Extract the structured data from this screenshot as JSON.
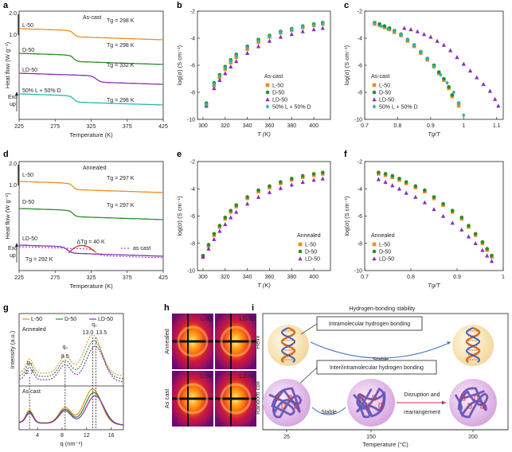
{
  "panel_letters": [
    "a",
    "b",
    "c",
    "d",
    "e",
    "f",
    "g",
    "h",
    "i"
  ],
  "colors": {
    "L": "#f08c1e",
    "D": "#2a8c2a",
    "LD": "#8a2db8",
    "mix": "#2ab5b5",
    "red": "#d42a2a"
  },
  "chart_data": [
    {
      "id": "a",
      "type": "line",
      "title": "As-cast",
      "xlabel": "Temperature (K)",
      "ylabel": "Heat flow (W g⁻¹)",
      "xticks": [
        "225",
        "275",
        "325",
        "375",
        "425"
      ],
      "xlim": [
        225,
        425
      ],
      "scale_labels": [
        "2.0",
        "1.0"
      ],
      "exo_label": "Exo\nup",
      "series": [
        {
          "name": "L-50",
          "color": "#f08c1e",
          "tg_label": "Tg = 298 K"
        },
        {
          "name": "D-50",
          "color": "#2a8c2a",
          "tg_label": "Tg = 298 K"
        },
        {
          "name": "LD-50",
          "color": "#8a2db8",
          "tg_label": "Tg = 332 K"
        },
        {
          "name": "50% L + 50% D",
          "color": "#2ab5b5",
          "tg_label": "Tg = 298 K"
        }
      ]
    },
    {
      "id": "b",
      "type": "scatter",
      "legend_title": "As-cast",
      "xlabel": "T (K)",
      "ylabel": "log(σ) (S cm⁻¹)",
      "xlim": [
        295,
        415
      ],
      "ylim": [
        -10,
        -2
      ],
      "xticks": [
        300,
        320,
        340,
        360,
        380,
        400
      ],
      "yticks": [
        -2,
        -4,
        -6,
        -8,
        -10
      ],
      "series": [
        {
          "name": "L-50",
          "marker": "square",
          "color": "#f08c1e",
          "x": [
            303,
            310,
            315,
            320,
            325,
            330,
            340,
            350,
            360,
            370,
            380,
            390,
            400,
            408
          ],
          "y": [
            -9.0,
            -7.5,
            -6.9,
            -6.3,
            -5.8,
            -5.4,
            -4.8,
            -4.3,
            -3.9,
            -3.6,
            -3.4,
            -3.2,
            -3.05,
            -2.95
          ]
        },
        {
          "name": "D-50",
          "marker": "circle",
          "color": "#2a8c2a",
          "x": [
            303,
            310,
            315,
            320,
            325,
            330,
            340,
            350,
            360,
            370,
            380,
            390,
            400,
            408
          ],
          "y": [
            -8.8,
            -7.3,
            -6.7,
            -6.1,
            -5.6,
            -5.2,
            -4.6,
            -4.1,
            -3.8,
            -3.5,
            -3.3,
            -3.1,
            -2.95,
            -2.85
          ]
        },
        {
          "name": "LD-50",
          "marker": "triangle",
          "color": "#8a2db8",
          "x": [
            303,
            310,
            315,
            320,
            325,
            330,
            340,
            350,
            360,
            370,
            380,
            390,
            400,
            408
          ],
          "y": [
            -9.0,
            -7.7,
            -7.1,
            -6.6,
            -6.1,
            -5.7,
            -5.1,
            -4.6,
            -4.2,
            -3.9,
            -3.7,
            -3.5,
            -3.35,
            -3.25
          ]
        },
        {
          "name": "50% L + 50% D",
          "marker": "diamond",
          "color": "#2ab5b5",
          "x": [
            303,
            310,
            315,
            320,
            325,
            330,
            340,
            350,
            360,
            370,
            380,
            390,
            400,
            408
          ],
          "y": [
            -8.9,
            -7.4,
            -6.8,
            -6.2,
            -5.7,
            -5.3,
            -4.7,
            -4.2,
            -3.85,
            -3.55,
            -3.35,
            -3.15,
            -3.0,
            -2.9
          ]
        }
      ]
    },
    {
      "id": "c",
      "type": "scatter",
      "legend_title": "As-cast",
      "xlabel": "Tg/T",
      "ylabel": "log(σ) (S cm⁻¹)",
      "xlim": [
        0.7,
        1.12
      ],
      "ylim": [
        -10,
        -2
      ],
      "xticks": [
        0.7,
        0.8,
        0.9,
        1.0,
        1.1
      ],
      "yticks": [
        -2,
        -4,
        -6,
        -8,
        -10
      ],
      "series": [
        {
          "name": "L-50",
          "marker": "square",
          "color": "#f08c1e",
          "x": [
            0.73,
            0.745,
            0.76,
            0.775,
            0.79,
            0.81,
            0.83,
            0.85,
            0.87,
            0.89,
            0.91,
            0.925,
            0.94,
            0.955,
            0.965,
            0.985
          ],
          "y": [
            -2.95,
            -3.05,
            -3.2,
            -3.35,
            -3.55,
            -3.8,
            -4.2,
            -4.6,
            -5.1,
            -5.6,
            -6.1,
            -6.6,
            -7.1,
            -7.7,
            -8.3,
            -9.0
          ]
        },
        {
          "name": "D-50",
          "marker": "circle",
          "color": "#2a8c2a",
          "x": [
            0.73,
            0.745,
            0.76,
            0.775,
            0.79,
            0.81,
            0.83,
            0.85,
            0.87,
            0.89,
            0.91,
            0.925,
            0.94,
            0.955,
            0.965,
            0.985
          ],
          "y": [
            -2.85,
            -2.95,
            -3.1,
            -3.25,
            -3.45,
            -3.7,
            -4.1,
            -4.5,
            -5.0,
            -5.5,
            -6.0,
            -6.5,
            -7.0,
            -7.6,
            -8.2,
            -8.8
          ]
        },
        {
          "name": "LD-50",
          "marker": "triangle",
          "color": "#8a2db8",
          "x": [
            0.82,
            0.84,
            0.86,
            0.88,
            0.9,
            0.92,
            0.94,
            0.96,
            0.98,
            1.0,
            1.02,
            1.04,
            1.06,
            1.08,
            1.095,
            1.105
          ],
          "y": [
            -3.25,
            -3.35,
            -3.5,
            -3.7,
            -3.9,
            -4.2,
            -4.5,
            -4.9,
            -5.4,
            -5.9,
            -6.4,
            -6.9,
            -7.4,
            -7.9,
            -8.5,
            -9.0
          ]
        },
        {
          "name": "50% L + 50% D",
          "marker": "diamond",
          "color": "#2ab5b5",
          "x": [
            0.73,
            0.75,
            0.77,
            0.79,
            0.81,
            0.83,
            0.85,
            0.87,
            0.89,
            0.91,
            0.93,
            0.95,
            0.97,
            0.985,
            1.0
          ],
          "y": [
            -2.9,
            -3.1,
            -3.3,
            -3.5,
            -3.75,
            -4.1,
            -4.5,
            -5.0,
            -5.5,
            -6.1,
            -6.7,
            -7.3,
            -8.0,
            -8.8,
            -9.7
          ]
        }
      ]
    },
    {
      "id": "d",
      "type": "line",
      "title": "Annealed",
      "xlabel": "Temperature (K)",
      "ylabel": "Heat flow (W g⁻¹)",
      "xticks": [
        "225",
        "275",
        "325",
        "375",
        "425"
      ],
      "xlim": [
        225,
        425
      ],
      "scale_labels": [
        "2.0",
        "1.0"
      ],
      "exo_label": "Exo\nup",
      "series": [
        {
          "name": "L-50",
          "color": "#f08c1e",
          "tg_label": "Tg = 297 K"
        },
        {
          "name": "D-50",
          "color": "#2a8c2a",
          "tg_label": "Tg = 297 K"
        },
        {
          "name": "LD-50",
          "color": "#8a2db8",
          "tg_label": "Tg = 292 K"
        }
      ],
      "annotation": "ΔTg = 40 K",
      "ascast_label": "as cast"
    },
    {
      "id": "e",
      "type": "scatter",
      "legend_title": "Annealed",
      "xlabel": "T (K)",
      "ylabel": "log(σ) (S cm⁻¹)",
      "xlim": [
        295,
        415
      ],
      "ylim": [
        -10,
        -2
      ],
      "xticks": [
        300,
        320,
        340,
        360,
        380,
        400
      ],
      "yticks": [
        -2,
        -4,
        -6,
        -8,
        -10
      ],
      "series": [
        {
          "name": "L-50",
          "marker": "square",
          "color": "#f08c1e",
          "x": [
            300,
            305,
            310,
            315,
            320,
            325,
            330,
            340,
            350,
            360,
            370,
            380,
            390,
            400,
            408
          ],
          "y": [
            -9.0,
            -8.2,
            -7.4,
            -6.8,
            -6.2,
            -5.7,
            -5.3,
            -4.7,
            -4.2,
            -3.9,
            -3.6,
            -3.35,
            -3.15,
            -3.0,
            -2.9
          ]
        },
        {
          "name": "D-50",
          "marker": "circle",
          "color": "#2a8c2a",
          "x": [
            300,
            305,
            310,
            315,
            320,
            325,
            330,
            340,
            350,
            360,
            370,
            380,
            390,
            400,
            408
          ],
          "y": [
            -8.9,
            -8.1,
            -7.3,
            -6.7,
            -6.1,
            -5.6,
            -5.2,
            -4.6,
            -4.1,
            -3.8,
            -3.5,
            -3.25,
            -3.05,
            -2.9,
            -2.8
          ]
        },
        {
          "name": "LD-50",
          "marker": "triangle",
          "color": "#8a2db8",
          "x": [
            300,
            305,
            310,
            315,
            320,
            325,
            330,
            340,
            350,
            360,
            370,
            380,
            390,
            400,
            408
          ],
          "y": [
            -9.0,
            -8.4,
            -7.7,
            -7.1,
            -6.6,
            -6.1,
            -5.7,
            -5.1,
            -4.6,
            -4.25,
            -3.95,
            -3.7,
            -3.5,
            -3.35,
            -3.25
          ]
        }
      ]
    },
    {
      "id": "f",
      "type": "scatter",
      "legend_title": "Annealed",
      "xlabel": "Tg/T",
      "ylabel": "log(σ) (S cm⁻¹)",
      "xlim": [
        0.7,
        1.0
      ],
      "ylim": [
        -10,
        -2
      ],
      "xticks": [
        0.7,
        0.8,
        0.9,
        1.0
      ],
      "yticks": [
        -2,
        -4,
        -6,
        -8,
        -10
      ],
      "series": [
        {
          "name": "L-50",
          "marker": "square",
          "color": "#f08c1e",
          "x": [
            0.73,
            0.745,
            0.76,
            0.775,
            0.79,
            0.81,
            0.83,
            0.85,
            0.87,
            0.89,
            0.91,
            0.925,
            0.94,
            0.955,
            0.965,
            0.975
          ],
          "y": [
            -2.9,
            -3.0,
            -3.15,
            -3.35,
            -3.6,
            -3.9,
            -4.2,
            -4.7,
            -5.2,
            -5.7,
            -6.2,
            -6.8,
            -7.4,
            -8.0,
            -8.5,
            -9.0
          ]
        },
        {
          "name": "D-50",
          "marker": "circle",
          "color": "#2a8c2a",
          "x": [
            0.73,
            0.745,
            0.76,
            0.775,
            0.79,
            0.81,
            0.83,
            0.85,
            0.87,
            0.89,
            0.91,
            0.925,
            0.94,
            0.955,
            0.965,
            0.975
          ],
          "y": [
            -2.8,
            -2.9,
            -3.05,
            -3.25,
            -3.5,
            -3.8,
            -4.1,
            -4.6,
            -5.1,
            -5.6,
            -6.1,
            -6.7,
            -7.3,
            -7.9,
            -8.4,
            -8.9
          ]
        },
        {
          "name": "LD-50",
          "marker": "triangle",
          "color": "#8a2db8",
          "x": [
            0.73,
            0.745,
            0.76,
            0.775,
            0.79,
            0.81,
            0.83,
            0.85,
            0.87,
            0.89,
            0.91,
            0.925,
            0.94,
            0.955,
            0.965,
            0.975
          ],
          "y": [
            -3.3,
            -3.5,
            -3.75,
            -4.0,
            -4.3,
            -4.6,
            -5.0,
            -5.5,
            -6.0,
            -6.5,
            -7.0,
            -7.5,
            -8.0,
            -8.5,
            -8.9,
            -9.3
          ]
        }
      ]
    },
    {
      "id": "g",
      "type": "line",
      "xlabel": "q (nm⁻¹)",
      "ylabel": "Intensity (a.u.)",
      "xlim": [
        1,
        18
      ],
      "xticks": [
        4,
        8,
        12,
        16
      ],
      "top_label": "Annealed",
      "bottom_label": "As cast",
      "peaks": [
        {
          "name": "q3",
          "value": "2.7",
          "q": 2.7
        },
        {
          "name": "q2",
          "value": "8.5",
          "q": 8.5
        },
        {
          "name": "q1",
          "value": "13.0",
          "q": 13.0
        },
        {
          "name": "q1b",
          "value": "13.5",
          "q": 13.5
        }
      ],
      "peak_symbols": [
        "q₃",
        "q₂",
        "q₁"
      ],
      "series": [
        {
          "name": "L-50",
          "color": "#f08c1e"
        },
        {
          "name": "D-50",
          "color": "#2a8c2a"
        },
        {
          "name": "LD-50",
          "color": "#8a2db8"
        }
      ]
    }
  ],
  "panel_h": {
    "row_labels": [
      "Annealed",
      "As cast"
    ],
    "col_labels": [
      "L-50",
      "LD-50"
    ]
  },
  "panel_i": {
    "title": "Hydrogen-bonding stability",
    "row_labels": [
      "Helix",
      "Random coil"
    ],
    "box_intra": "Intramolecular hydrogen bonding",
    "box_inter": "Inter/intramolecular hydrogen bonding",
    "stable_1": "Stable",
    "stable_2": "Stable",
    "disruption": "Disruption and\nrearrangement",
    "xticks": [
      "25",
      "150",
      "200"
    ],
    "xlabel": "Temperature (°C)"
  }
}
